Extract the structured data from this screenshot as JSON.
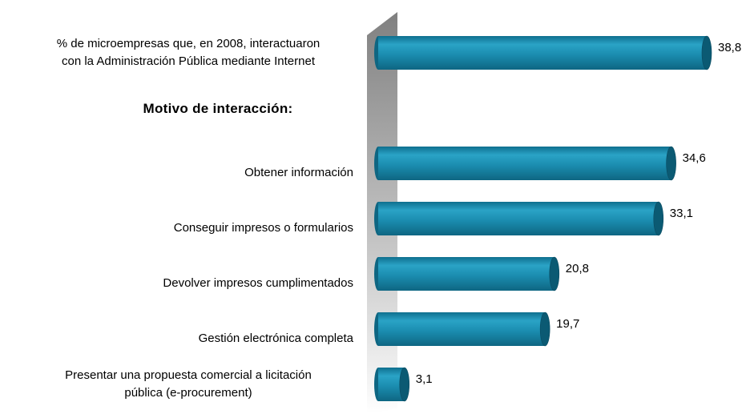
{
  "chart_data": {
    "type": "bar",
    "orientation": "horizontal",
    "categories": [
      "% de microempresas que, en 2008,  interactuaron\ncon la Administración Pública mediante Internet",
      null,
      "Obtener información",
      "Conseguir impresos o formularios",
      "Devolver impresos cumplimentados",
      "Gestión electrónica completa",
      "Presentar una propuesta comercial a licitación\npública (e-procurement)"
    ],
    "values": [
      38.8,
      null,
      34.6,
      33.1,
      20.8,
      19.7,
      3.1
    ],
    "value_labels": [
      "38,8",
      null,
      "34,6",
      "33,1",
      "20,8",
      "19,7",
      "3,1"
    ],
    "color": "#1b8db0",
    "annotations": [
      "Motivo de interacción:"
    ]
  }
}
